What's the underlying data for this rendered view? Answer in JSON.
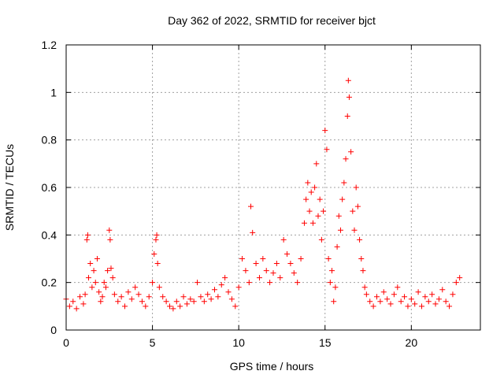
{
  "chart_data": {
    "type": "scatter",
    "title": "Day 362 of 2022, SRMTID for receiver bjct",
    "xlabel": "GPS time / hours",
    "ylabel": "SRMTID / TECUs",
    "xlim": [
      0,
      24
    ],
    "ylim": [
      0,
      1.2
    ],
    "xticks": [
      0,
      5,
      10,
      15,
      20
    ],
    "yticks": [
      0,
      0.2,
      0.4,
      0.6,
      0.8,
      1,
      1.2
    ],
    "xtick_labels": [
      "0",
      "5",
      "10",
      "15",
      "20"
    ],
    "ytick_labels": [
      "0",
      "0.2",
      "0.4",
      "0.6",
      "0.8",
      "1",
      "1.2"
    ],
    "grid": true,
    "marker": "+",
    "color": "#ff0000",
    "series": [
      {
        "name": "SRMTID",
        "x": [
          0.0,
          0.2,
          0.4,
          0.6,
          0.8,
          1.0,
          1.1,
          1.2,
          1.25,
          1.3,
          1.4,
          1.5,
          1.6,
          1.7,
          1.8,
          1.9,
          2.0,
          2.1,
          2.2,
          2.3,
          2.4,
          2.5,
          2.55,
          2.6,
          2.7,
          2.8,
          3.0,
          3.2,
          3.4,
          3.6,
          3.8,
          4.0,
          4.2,
          4.4,
          4.6,
          4.8,
          5.0,
          5.1,
          5.2,
          5.25,
          5.3,
          5.4,
          5.6,
          5.8,
          6.0,
          6.2,
          6.4,
          6.6,
          6.8,
          7.0,
          7.2,
          7.4,
          7.6,
          7.8,
          8.0,
          8.2,
          8.4,
          8.6,
          8.8,
          9.0,
          9.2,
          9.4,
          9.6,
          9.8,
          10.0,
          10.2,
          10.4,
          10.6,
          10.7,
          10.8,
          11.0,
          11.2,
          11.4,
          11.6,
          11.8,
          12.0,
          12.2,
          12.4,
          12.6,
          12.8,
          13.0,
          13.2,
          13.4,
          13.6,
          13.8,
          13.9,
          14.0,
          14.1,
          14.2,
          14.3,
          14.4,
          14.5,
          14.6,
          14.7,
          14.8,
          14.9,
          15.0,
          15.1,
          15.2,
          15.3,
          15.4,
          15.5,
          15.6,
          15.7,
          15.8,
          15.9,
          16.0,
          16.1,
          16.2,
          16.3,
          16.35,
          16.4,
          16.5,
          16.6,
          16.7,
          16.8,
          16.9,
          17.0,
          17.1,
          17.2,
          17.3,
          17.4,
          17.6,
          17.8,
          18.0,
          18.2,
          18.4,
          18.6,
          18.8,
          19.0,
          19.2,
          19.4,
          19.6,
          19.8,
          20.0,
          20.2,
          20.4,
          20.6,
          20.8,
          21.0,
          21.2,
          21.4,
          21.6,
          21.8,
          22.0,
          22.2,
          22.4,
          22.6,
          22.8
        ],
        "y": [
          0.13,
          0.1,
          0.12,
          0.09,
          0.14,
          0.11,
          0.15,
          0.38,
          0.4,
          0.22,
          0.28,
          0.18,
          0.25,
          0.2,
          0.3,
          0.16,
          0.12,
          0.14,
          0.2,
          0.18,
          0.25,
          0.42,
          0.38,
          0.26,
          0.22,
          0.15,
          0.12,
          0.14,
          0.1,
          0.16,
          0.13,
          0.18,
          0.15,
          0.12,
          0.1,
          0.14,
          0.2,
          0.32,
          0.38,
          0.4,
          0.28,
          0.18,
          0.14,
          0.12,
          0.1,
          0.09,
          0.12,
          0.1,
          0.14,
          0.11,
          0.13,
          0.12,
          0.2,
          0.14,
          0.12,
          0.15,
          0.13,
          0.17,
          0.14,
          0.19,
          0.22,
          0.16,
          0.13,
          0.1,
          0.18,
          0.3,
          0.25,
          0.2,
          0.52,
          0.41,
          0.28,
          0.22,
          0.3,
          0.25,
          0.2,
          0.24,
          0.28,
          0.22,
          0.38,
          0.32,
          0.28,
          0.24,
          0.2,
          0.3,
          0.45,
          0.55,
          0.62,
          0.5,
          0.58,
          0.45,
          0.6,
          0.7,
          0.48,
          0.55,
          0.38,
          0.5,
          0.84,
          0.76,
          0.3,
          0.2,
          0.25,
          0.12,
          0.18,
          0.35,
          0.48,
          0.42,
          0.55,
          0.62,
          0.72,
          0.9,
          1.05,
          0.98,
          0.75,
          0.5,
          0.42,
          0.6,
          0.52,
          0.38,
          0.3,
          0.25,
          0.18,
          0.15,
          0.12,
          0.1,
          0.14,
          0.12,
          0.16,
          0.13,
          0.11,
          0.15,
          0.18,
          0.12,
          0.14,
          0.1,
          0.13,
          0.11,
          0.16,
          0.1,
          0.14,
          0.12,
          0.15,
          0.11,
          0.13,
          0.17,
          0.12,
          0.1,
          0.15,
          0.2,
          0.22
        ]
      }
    ]
  }
}
